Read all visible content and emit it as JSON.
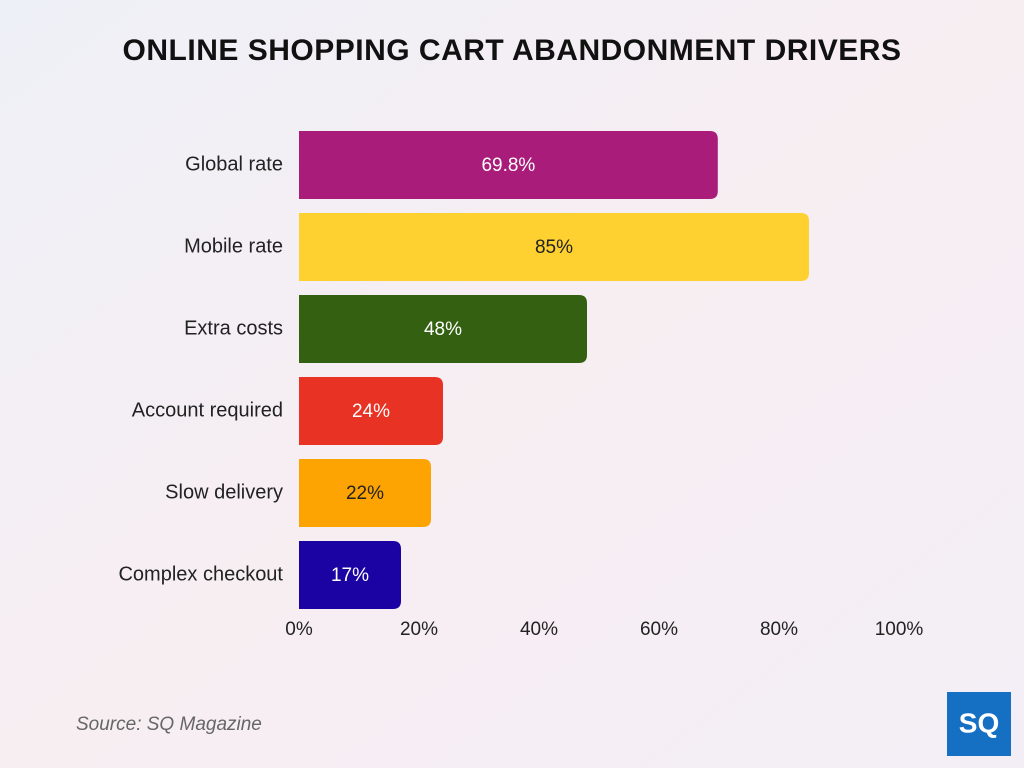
{
  "chart_data": {
    "type": "bar",
    "orientation": "horizontal",
    "title": "ONLINE SHOPPING CART ABANDONMENT DRIVERS",
    "categories": [
      "Global rate",
      "Mobile rate",
      "Extra costs",
      "Account required",
      "Slow delivery",
      "Complex checkout"
    ],
    "values": [
      69.8,
      85,
      48,
      24,
      22,
      17
    ],
    "value_labels": [
      "69.8%",
      "85%",
      "48%",
      "24%",
      "22%",
      "17%"
    ],
    "colors": [
      "#a91c7a",
      "#fed130",
      "#336111",
      "#e83224",
      "#fda302",
      "#1a02a3"
    ],
    "label_colors": [
      "#ffffff",
      "#222222",
      "#ffffff",
      "#ffffff",
      "#222222",
      "#ffffff"
    ],
    "xlim": [
      0,
      100
    ],
    "xticks": [
      {
        "value": 0,
        "label": "0%"
      },
      {
        "value": 20,
        "label": "20%"
      },
      {
        "value": 40,
        "label": "40%"
      },
      {
        "value": 60,
        "label": "60%"
      },
      {
        "value": 80,
        "label": "80%"
      },
      {
        "value": 100,
        "label": "100%"
      }
    ],
    "grid": false,
    "source": "Source: SQ Magazine",
    "logo": "SQ"
  }
}
